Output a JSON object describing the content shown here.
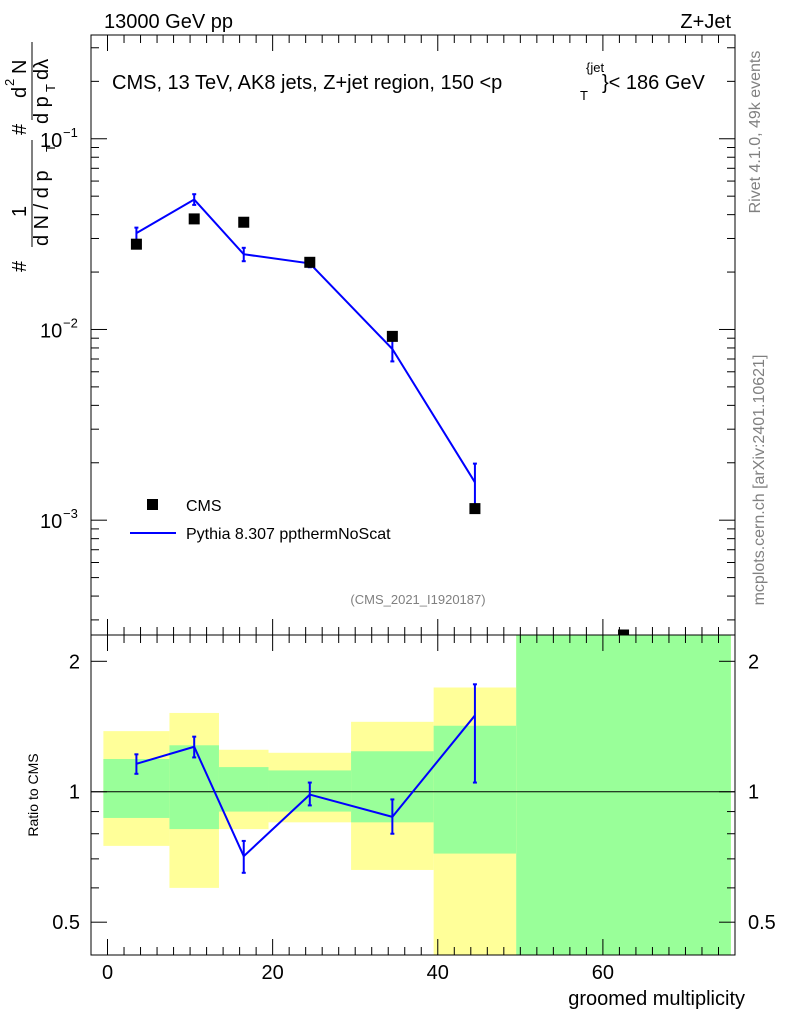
{
  "header": {
    "left": "13000 GeV pp",
    "right": "Z+Jet"
  },
  "side_text": {
    "rivet": "Rivet 4.1.0,  49k events",
    "mcplots": "mcplots.cern.ch [arXiv:2401.10621]"
  },
  "chart_data": [
    {
      "type": "scatter",
      "panel": "main",
      "title": "CMS, 13 TeV, AK8 jets, Z+jet region, 150 <p_T^{jet}< 186 GeV",
      "title_parts": {
        "prefix": "CMS, 13 TeV, AK8 jets, Z+jet region, 150 <p",
        "sup": "{jet",
        "sub": "T",
        "suffix": "}< 186 GeV"
      },
      "ylabel_parts": {
        "hash": "#",
        "one": "1",
        "denom": "d N / d p",
        "denom_sub": "T",
        "hash2": "#",
        "num": "d",
        "num_sup": "2",
        "num_N": "N",
        "den2": "d p",
        "den2_sub": "T",
        "den2_tail": "dλ"
      },
      "yscale": "log",
      "ylim": [
        0.00025,
        0.35
      ],
      "xlim": [
        -2,
        76
      ],
      "yticks": [
        {
          "value": 0.1,
          "base": "10",
          "exp": "−1"
        },
        {
          "value": 0.01,
          "base": "10",
          "exp": "−2"
        },
        {
          "value": 0.001,
          "base": "10",
          "exp": "−3"
        }
      ],
      "watermark": "(CMS_2021_I1920187)",
      "legend": {
        "position": "bottom-left",
        "entries": [
          "CMS",
          "Pythia 8.307 ppthermNoScat"
        ]
      },
      "series": [
        {
          "name": "CMS",
          "style": "markers",
          "color": "#000000",
          "x": [
            3.5,
            10.5,
            16.5,
            24.5,
            34.5,
            44.5,
            62.5
          ],
          "y": [
            0.028,
            0.038,
            0.0365,
            0.0225,
            0.0092,
            0.00115,
            0.00024
          ]
        },
        {
          "name": "Pythia 8.307 ppthermNoScat",
          "style": "line",
          "color": "#0000ff",
          "x": [
            3.5,
            10.5,
            16.5,
            24.5,
            34.5,
            44.5
          ],
          "y": [
            0.032,
            0.048,
            0.0248,
            0.0222,
            0.0079,
            0.00158
          ],
          "yerr_low": [
            0.029,
            0.045,
            0.0228,
            0.0212,
            0.0068,
            0.00115
          ],
          "yerr_high": [
            0.0342,
            0.0512,
            0.0268,
            0.0233,
            0.0089,
            0.00198
          ]
        }
      ]
    },
    {
      "type": "line",
      "panel": "ratio",
      "ylabel": "Ratio to CMS",
      "xlabel": "groomed multiplicity",
      "yscale": "log",
      "ylim": [
        0.42,
        2.3
      ],
      "xlim": [
        -2,
        76
      ],
      "yticks": [
        {
          "value": 0.5,
          "label": "0.5"
        },
        {
          "value": 1,
          "label": "1"
        },
        {
          "value": 2,
          "label": "2"
        }
      ],
      "xticks": [
        {
          "value": 0,
          "label": "0"
        },
        {
          "value": 20,
          "label": "20"
        },
        {
          "value": 40,
          "label": "40"
        },
        {
          "value": 60,
          "label": "60"
        }
      ],
      "bands": [
        {
          "x0": -0.5,
          "x1": 7.5,
          "yellow": [
            0.75,
            1.38
          ],
          "green": [
            0.87,
            1.19
          ]
        },
        {
          "x0": 7.5,
          "x1": 13.5,
          "yellow": [
            0.6,
            1.52
          ],
          "green": [
            0.82,
            1.28
          ]
        },
        {
          "x0": 13.5,
          "x1": 19.5,
          "yellow": [
            0.82,
            1.25
          ],
          "green": [
            0.9,
            1.14
          ]
        },
        {
          "x0": 19.5,
          "x1": 29.5,
          "yellow": [
            0.85,
            1.23
          ],
          "green": [
            0.9,
            1.12
          ]
        },
        {
          "x0": 29.5,
          "x1": 39.5,
          "yellow": [
            0.66,
            1.45
          ],
          "green": [
            0.85,
            1.24
          ]
        },
        {
          "x0": 39.5,
          "x1": 49.5,
          "yellow": [
            0.4,
            1.74
          ],
          "green": [
            0.72,
            1.42
          ]
        },
        {
          "x0": 49.5,
          "x1": 75.5,
          "yellow": [
            0.4,
            2.3
          ],
          "green": [
            0.4,
            2.3
          ]
        }
      ],
      "series": [
        {
          "name": "Pythia 8.307 ppthermNoScat / CMS",
          "color": "#0000ff",
          "x": [
            3.5,
            10.5,
            16.5,
            24.5,
            34.5,
            44.5
          ],
          "y": [
            1.16,
            1.27,
            0.71,
            0.985,
            0.875,
            1.5
          ],
          "yerr_low": [
            1.1,
            1.2,
            0.65,
            0.93,
            0.8,
            1.05
          ],
          "yerr_high": [
            1.22,
            1.34,
            0.77,
            1.05,
            0.96,
            1.77
          ]
        }
      ]
    }
  ]
}
